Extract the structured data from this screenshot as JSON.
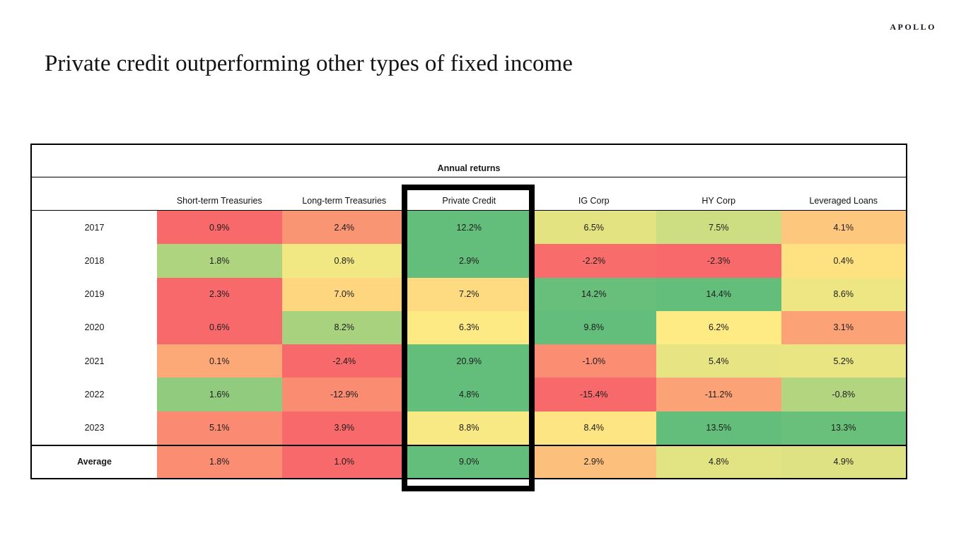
{
  "logo_text": "APOLLO",
  "page_title": "Private credit outperforming other types of fixed income",
  "table": {
    "header": "Annual returns",
    "highlighted_column": "Private Credit",
    "cell_colors": [
      [
        "#F8696B",
        "#FA9574",
        "#63BE7B",
        "#E4E382",
        "#CDDD81",
        "#FDC87D"
      ],
      [
        "#AED47F",
        "#F1E783",
        "#63BE7B",
        "#F86D6C",
        "#F8696B",
        "#FEE282"
      ],
      [
        "#F8696B",
        "#FED680",
        "#FEDB81",
        "#68BF7B",
        "#63BE7B",
        "#EEE683"
      ],
      [
        "#F8696B",
        "#A9D27F",
        "#FDEA84",
        "#63BE7B",
        "#FFEB84",
        "#FBA376"
      ],
      [
        "#FCA977",
        "#F8696B",
        "#63BE7B",
        "#FA8D72",
        "#E7E483",
        "#E9E583"
      ],
      [
        "#91CB7E",
        "#FA8C72",
        "#63BE7B",
        "#F8696B",
        "#FBA376",
        "#B4D580"
      ],
      [
        "#FA8A71",
        "#F8696B",
        "#F9E984",
        "#FEE583",
        "#63BE7B",
        "#69C07B"
      ],
      [
        "#FA8D72",
        "#F8696B",
        "#63BE7B",
        "#FDC07C",
        "#E2E382",
        "#DFE282"
      ]
    ],
    "color_scale": {
      "low": "#F8696B",
      "mid": "#FFEB84",
      "high": "#63BE7B"
    }
  },
  "chart_data": {
    "type": "heatmap",
    "title": "Annual returns",
    "columns": [
      "Short-term Treasuries",
      "Long-term Treasuries",
      "Private Credit",
      "IG Corp",
      "HY Corp",
      "Leveraged Loans"
    ],
    "rows": [
      "2017",
      "2018",
      "2019",
      "2020",
      "2021",
      "2022",
      "2023",
      "Average"
    ],
    "units": "%",
    "values": [
      [
        0.9,
        2.4,
        12.2,
        6.5,
        7.5,
        4.1
      ],
      [
        1.8,
        0.8,
        2.9,
        -2.2,
        -2.3,
        0.4
      ],
      [
        2.3,
        7.0,
        7.2,
        14.2,
        14.4,
        8.6
      ],
      [
        0.6,
        8.2,
        6.3,
        9.8,
        6.2,
        3.1
      ],
      [
        0.1,
        -2.4,
        20.9,
        -1.0,
        5.4,
        5.2
      ],
      [
        1.6,
        -12.9,
        4.8,
        -15.4,
        -11.2,
        -0.8
      ],
      [
        5.1,
        3.9,
        8.8,
        8.4,
        13.5,
        13.3
      ],
      [
        1.8,
        1.0,
        9.0,
        2.9,
        4.8,
        4.9
      ]
    ],
    "highlighted_column": "Private Credit",
    "legend": "row-wise red-yellow-green color scale"
  }
}
